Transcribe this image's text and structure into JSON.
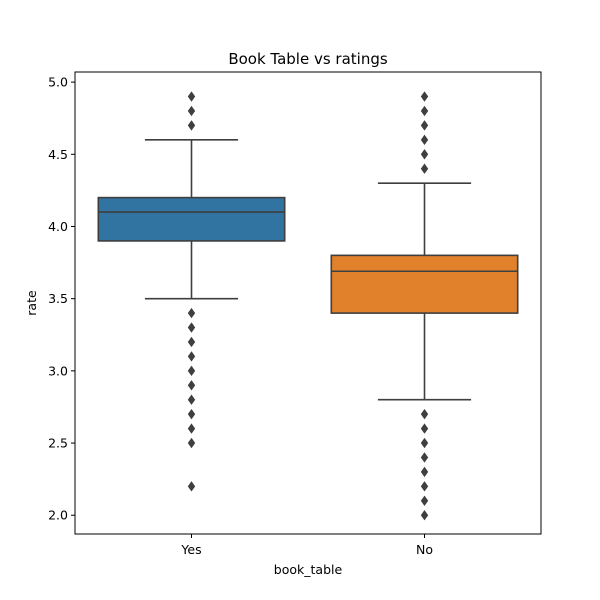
{
  "chart_data": {
    "type": "boxplot",
    "title": "Book Table vs ratings",
    "xlabel": "book_table",
    "ylabel": "rate",
    "ylim": [
      1.87,
      5.07
    ],
    "yticks": [
      2.0,
      2.5,
      3.0,
      3.5,
      4.0,
      4.5,
      5.0
    ],
    "ytick_labels": [
      "2.0",
      "2.5",
      "3.0",
      "3.5",
      "4.0",
      "4.5",
      "5.0"
    ],
    "grid": false,
    "categories": [
      "Yes",
      "No"
    ],
    "boxes": [
      {
        "category": "Yes",
        "color": "#3274a1",
        "whisker_low": 3.5,
        "q1": 3.9,
        "median": 4.1,
        "q3": 4.2,
        "whisker_high": 4.6,
        "outliers": [
          2.2,
          2.5,
          2.6,
          2.7,
          2.8,
          2.9,
          3.0,
          3.1,
          3.2,
          3.3,
          3.4,
          4.7,
          4.8,
          4.9
        ]
      },
      {
        "category": "No",
        "color": "#e1812c",
        "whisker_low": 2.8,
        "q1": 3.4,
        "median": 3.69,
        "q3": 3.8,
        "whisker_high": 4.3,
        "outliers": [
          2.0,
          2.1,
          2.2,
          2.3,
          2.4,
          2.5,
          2.6,
          2.7,
          4.4,
          4.5,
          4.6,
          4.7,
          4.8,
          4.9
        ]
      }
    ]
  }
}
